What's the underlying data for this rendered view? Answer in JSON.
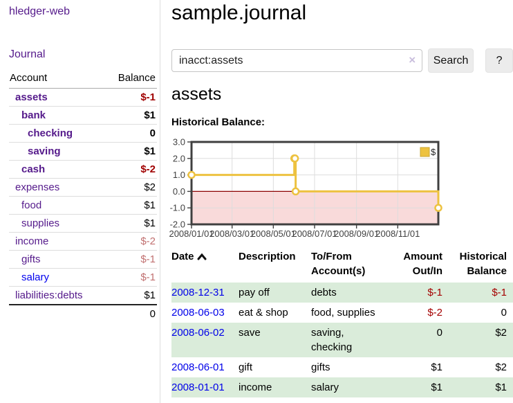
{
  "sidebar": {
    "brand": "hledger-web",
    "nav": {
      "journal": "Journal"
    },
    "accounts_table": {
      "headers": {
        "account": "Account",
        "balance": "Balance"
      },
      "rows": [
        {
          "name": "assets",
          "level": 0,
          "bold": true,
          "visited": true,
          "balance": "$-1"
        },
        {
          "name": "bank",
          "level": 1,
          "bold": true,
          "visited": true,
          "balance": "$1"
        },
        {
          "name": "checking",
          "level": 2,
          "bold": true,
          "visited": true,
          "balance": "0"
        },
        {
          "name": "saving",
          "level": 2,
          "bold": true,
          "visited": true,
          "balance": "$1"
        },
        {
          "name": "cash",
          "level": 1,
          "bold": true,
          "visited": true,
          "balance": "$-2"
        },
        {
          "name": "expenses",
          "level": 0,
          "bold": false,
          "visited": true,
          "balance": "$2"
        },
        {
          "name": "food",
          "level": 1,
          "bold": false,
          "visited": true,
          "balance": "$1"
        },
        {
          "name": "supplies",
          "level": 1,
          "bold": false,
          "visited": true,
          "balance": "$1"
        },
        {
          "name": "income",
          "level": 0,
          "bold": false,
          "visited": true,
          "balance": "$-2"
        },
        {
          "name": "gifts",
          "level": 1,
          "bold": false,
          "visited": true,
          "balance": "$-1"
        },
        {
          "name": "salary",
          "level": 1,
          "bold": false,
          "visited": false,
          "balance": "$-1"
        },
        {
          "name": "liabilities:debts",
          "level": 0,
          "bold": false,
          "visited": true,
          "balance": "$1"
        }
      ],
      "total": "0"
    }
  },
  "main": {
    "title": "sample.journal",
    "search": {
      "value": "inacct:assets",
      "clear_icon": "×",
      "search_label": "Search",
      "help_label": "?"
    },
    "account_heading": "assets",
    "chart_label": "Historical Balance:"
  },
  "chart_data": {
    "type": "line",
    "step": true,
    "title": "Historical Balance",
    "series": [
      {
        "name": "$",
        "color": "#edc240",
        "points": [
          [
            "2008-01-01",
            1
          ],
          [
            "2008-06-01",
            2
          ],
          [
            "2008-06-02",
            2
          ],
          [
            "2008-06-03",
            0
          ],
          [
            "2008-12-31",
            -1
          ]
        ]
      }
    ],
    "x_range": [
      "2008-01-01",
      "2008-12-31"
    ],
    "ylim": [
      -2,
      3
    ],
    "yticks": [
      "3.0",
      "2.0",
      "1.0",
      "0.0",
      "-1.0",
      "-2.0"
    ],
    "xticks": [
      "2008/01/01",
      "2008/03/01",
      "2008/05/01",
      "2008/07/01",
      "2008/09/01",
      "2008/11/01"
    ],
    "legend": {
      "label": "$",
      "position": "top-right"
    },
    "grid": true,
    "negative_region_color": "#f9dada",
    "zero_line_color": "#8b0000",
    "border_color": "#3f3f3f",
    "grid_color": "#dddddd"
  },
  "register_table": {
    "headers": {
      "date": "Date",
      "description": "Description",
      "accounts": "To/From Account(s)",
      "amount": "Amount Out/In",
      "balance": "Historical Balance"
    },
    "rows": [
      {
        "date": "2008-12-31",
        "description": "pay off",
        "accounts": "debts",
        "amount": "$-1",
        "balance": "$-1"
      },
      {
        "date": "2008-06-03",
        "description": "eat & shop",
        "accounts": "food, supplies",
        "amount": "$-2",
        "balance": "0"
      },
      {
        "date": "2008-06-02",
        "description": "save",
        "accounts": "saving, checking",
        "amount": "0",
        "balance": "$2"
      },
      {
        "date": "2008-06-01",
        "description": "gift",
        "accounts": "gifts",
        "amount": "$1",
        "balance": "$2"
      },
      {
        "date": "2008-01-01",
        "description": "income",
        "accounts": "salary",
        "amount": "$1",
        "balance": "$1"
      }
    ]
  }
}
